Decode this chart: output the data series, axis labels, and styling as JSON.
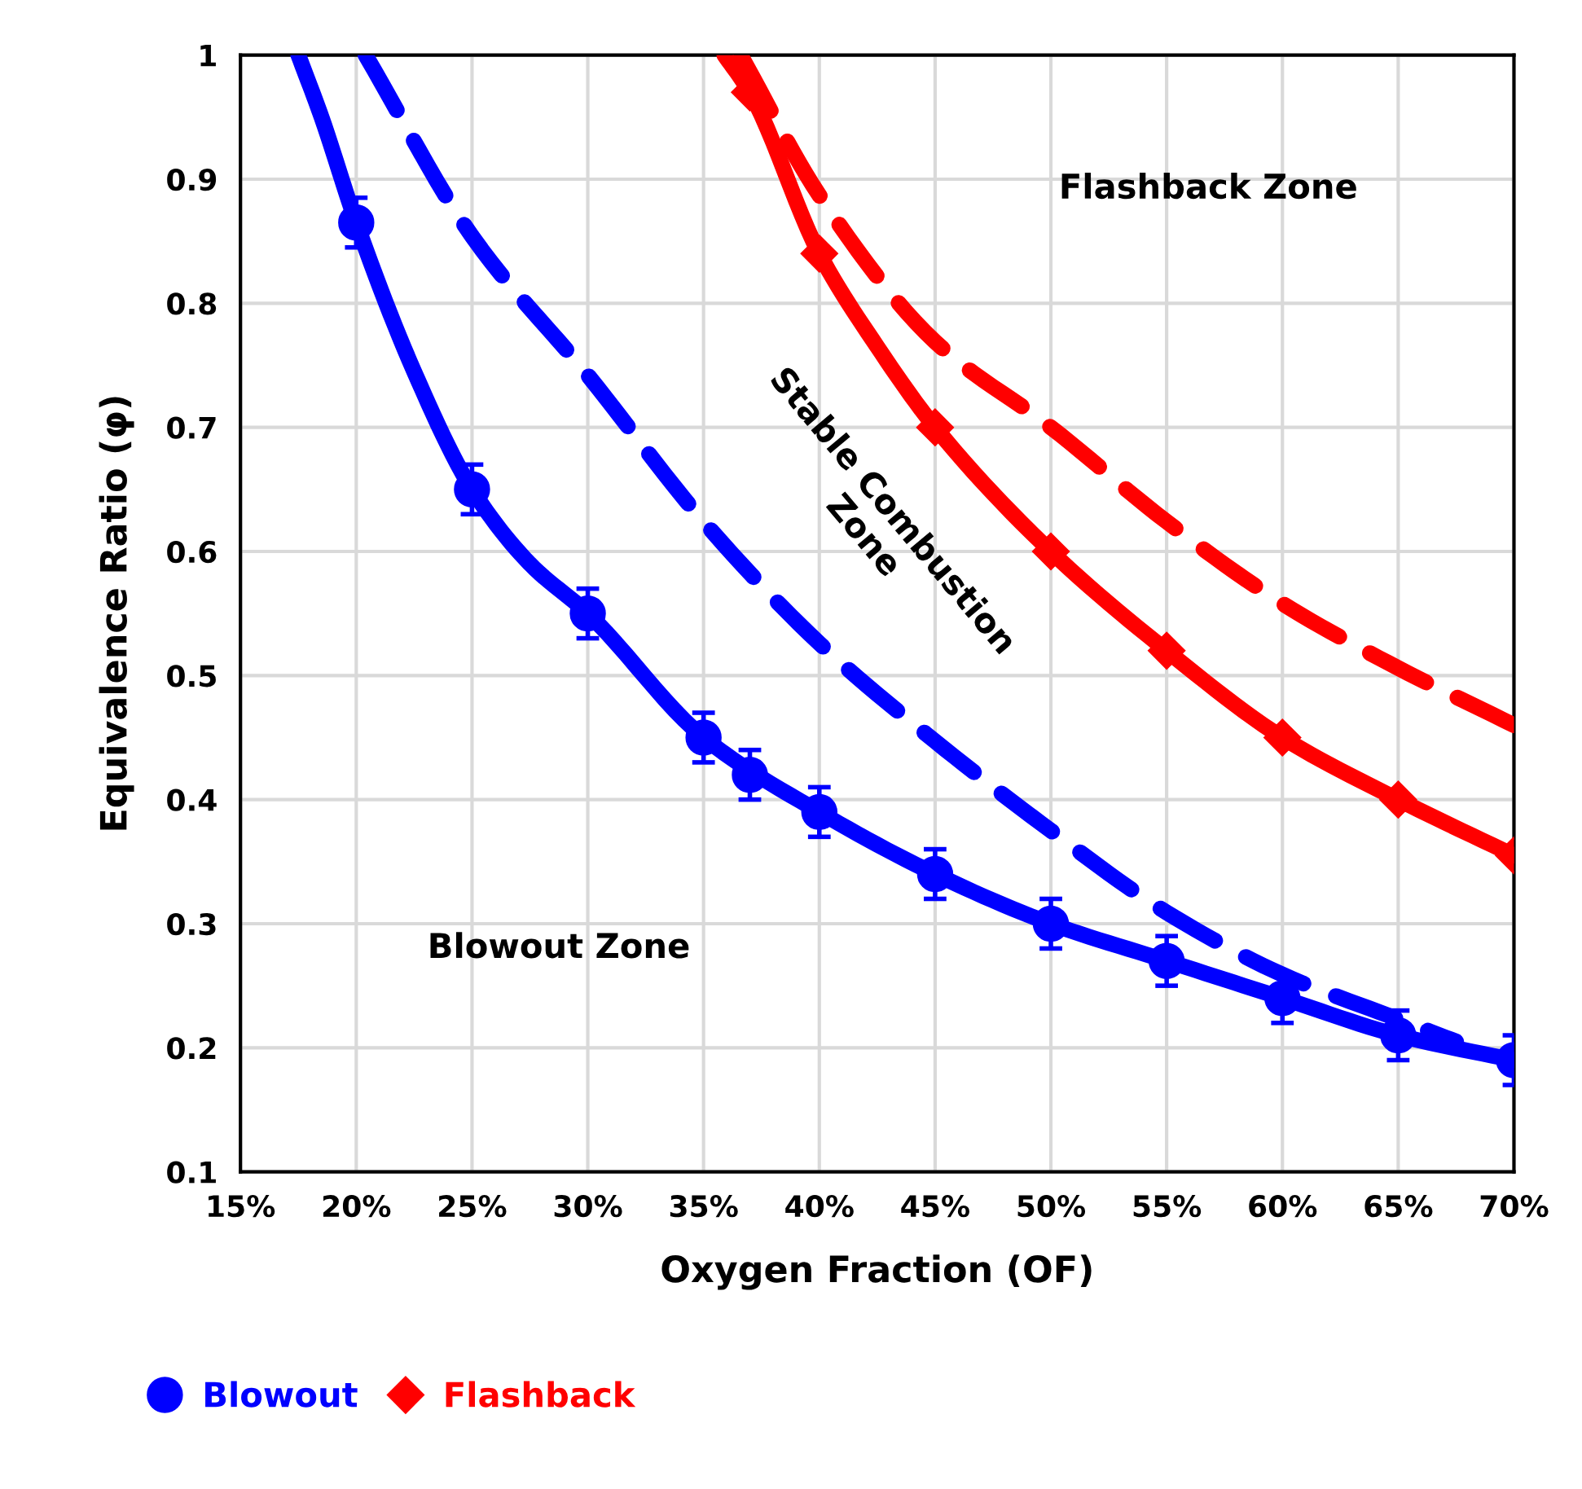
{
  "chart_data": {
    "type": "scatter",
    "xlabel": "Oxygen Fraction (OF)",
    "ylabel": "Equivalence Ratio (φ)",
    "annotations": [
      "Flashback Zone",
      "Stable Combustion\nZone",
      "Blowout Zone"
    ],
    "xlim": [
      15,
      70
    ],
    "ylim": [
      0.1,
      1
    ],
    "xticks": [
      {
        "value": 15,
        "label": "15%"
      },
      {
        "value": 20,
        "label": "20%"
      },
      {
        "value": 25,
        "label": "25%"
      },
      {
        "value": 30,
        "label": "30%"
      },
      {
        "value": 35,
        "label": "35%"
      },
      {
        "value": 40,
        "label": "40%"
      },
      {
        "value": 45,
        "label": "45%"
      },
      {
        "value": 50,
        "label": "50%"
      },
      {
        "value": 55,
        "label": "55%"
      },
      {
        "value": 60,
        "label": "60%"
      },
      {
        "value": 65,
        "label": "65%"
      },
      {
        "value": 70,
        "label": "70%"
      }
    ],
    "yticks": [
      0.1,
      0.2,
      0.3,
      0.4,
      0.5,
      0.6,
      0.7,
      0.8,
      0.9,
      1
    ],
    "grid": true,
    "legend": "bottom left",
    "series": [
      {
        "name": "Blowout",
        "marker": "circle",
        "color": "#0000ff",
        "x": [
          20,
          25,
          30,
          35,
          37,
          40,
          45,
          50,
          55,
          60,
          65,
          70
        ],
        "values": [
          0.865,
          0.65,
          0.55,
          0.45,
          0.42,
          0.39,
          0.34,
          0.3,
          0.27,
          0.24,
          0.21,
          0.19
        ],
        "errors": [
          0.02,
          0.02,
          0.02,
          0.02,
          0.02,
          0.02,
          0.02,
          0.02,
          0.02,
          0.02,
          0.02,
          0.02
        ]
      },
      {
        "name": "Flashback",
        "marker": "diamond",
        "color": "#ff0000",
        "x": [
          37,
          40,
          45,
          50,
          55,
          60,
          65,
          70
        ],
        "values": [
          0.97,
          0.84,
          0.7,
          0.6,
          0.52,
          0.45,
          0.4,
          0.355
        ]
      },
      {
        "type": "line",
        "line_style": "solid",
        "color": "#0000ff",
        "x": [
          17.5,
          18.5,
          20,
          22.5,
          25,
          27.5,
          30,
          35,
          40,
          45,
          50,
          55,
          60,
          65,
          70
        ],
        "values": [
          1.0,
          0.95,
          0.865,
          0.745,
          0.65,
          0.59,
          0.55,
          0.45,
          0.39,
          0.34,
          0.3,
          0.27,
          0.24,
          0.21,
          0.19
        ]
      },
      {
        "type": "line",
        "line_style": "dashed",
        "color": "#0000ff",
        "x": [
          20.4,
          25,
          30,
          35,
          40,
          45,
          50,
          55,
          60,
          65,
          67.5
        ],
        "values": [
          1.0,
          0.854,
          0.742,
          0.624,
          0.526,
          0.447,
          0.375,
          0.309,
          0.259,
          0.223,
          0.205
        ]
      },
      {
        "type": "line",
        "line_style": "solid",
        "color": "#ff0000",
        "x": [
          35.9,
          37,
          40,
          42.5,
          45,
          50,
          55,
          60,
          65,
          70
        ],
        "values": [
          1.0,
          0.97,
          0.84,
          0.765,
          0.7,
          0.6,
          0.52,
          0.45,
          0.4,
          0.355
        ]
      },
      {
        "type": "line",
        "line_style": "dashed",
        "color": "#ff0000",
        "x": [
          36.6,
          40,
          45,
          50,
          55,
          60,
          65,
          70
        ],
        "values": [
          1.0,
          0.887,
          0.769,
          0.7,
          0.624,
          0.558,
          0.506,
          0.46
        ]
      }
    ]
  }
}
